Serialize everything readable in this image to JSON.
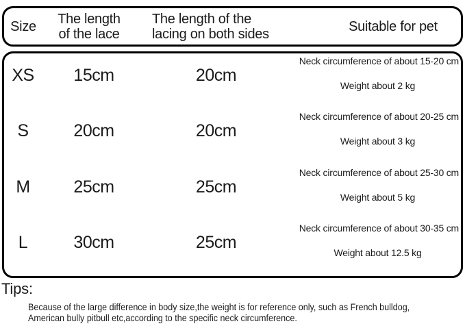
{
  "chart_data": {
    "type": "table",
    "columns": [
      "Size",
      "The length of the lace",
      "The length of the lacing on both sides",
      "Suitable for pet"
    ],
    "rows": [
      {
        "size": "XS",
        "lace_length": "15cm",
        "lacing_both_sides": "20cm",
        "neck": "Neck circumference of about 15-20 cm",
        "weight": "Weight about 2 kg"
      },
      {
        "size": "S",
        "lace_length": "20cm",
        "lacing_both_sides": "20cm",
        "neck": "Neck circumference of about 20-25 cm",
        "weight": "Weight about 3 kg"
      },
      {
        "size": "M",
        "lace_length": "25cm",
        "lacing_both_sides": "25cm",
        "neck": "Neck circumference of about 25-30 cm",
        "weight": "Weight about 5 kg"
      },
      {
        "size": "L",
        "lace_length": "30cm",
        "lacing_both_sides": "25cm",
        "neck": "Neck circumference of about 30-35 cm",
        "weight": "Weight about 12.5 kg"
      }
    ],
    "title": "",
    "layout": {
      "grid": "off",
      "header_boxed": true,
      "body_boxed": true
    }
  },
  "tips": {
    "label": "Tips:",
    "line1": "Because of the large difference in body size,the weight is for reference only, such as French bulldog,",
    "line2": "American bully pitbull etc,according to the specific neck circumference."
  },
  "colors": {
    "text": "#1b1b1b",
    "border": "#000000",
    "background": "#ffffff"
  }
}
